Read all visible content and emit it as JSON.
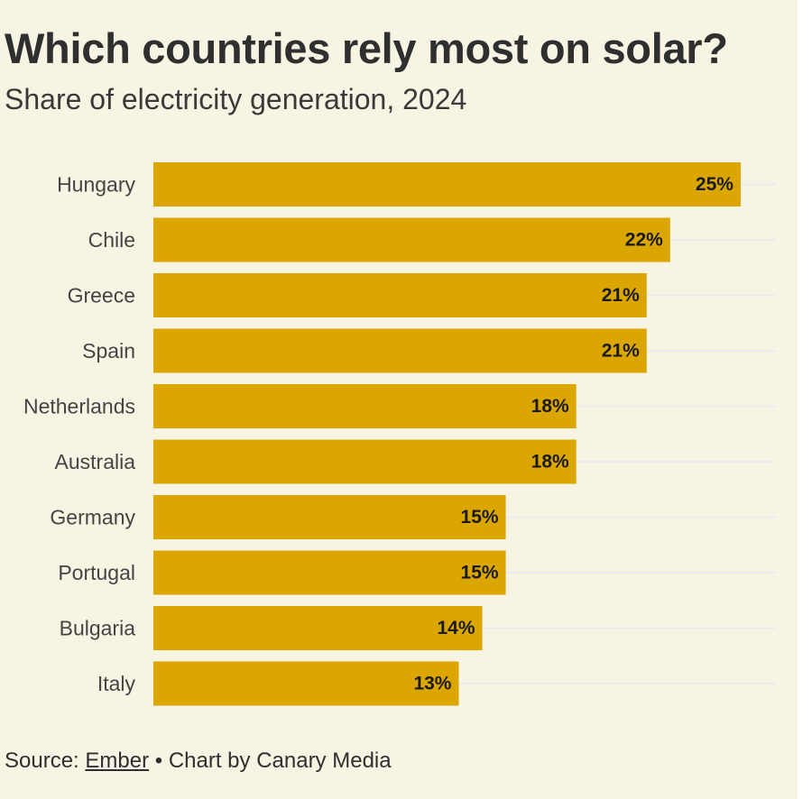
{
  "title": "Which countries rely most on solar?",
  "subtitle": "Share of electricity generation, 2024",
  "source": {
    "prefix": "Source: ",
    "link_text": "Ember",
    "suffix": " • Chart by Canary Media"
  },
  "colors": {
    "background": "#f8f4e4",
    "bar": "#dba600",
    "gridline": "#ebe9f2"
  },
  "chart_data": {
    "type": "bar",
    "orientation": "horizontal",
    "title": "Which countries rely most on solar?",
    "subtitle": "Share of electricity generation, 2024",
    "categories": [
      "Hungary",
      "Chile",
      "Greece",
      "Spain",
      "Netherlands",
      "Australia",
      "Germany",
      "Portugal",
      "Bulgaria",
      "Italy"
    ],
    "values": [
      25,
      22,
      21,
      21,
      18,
      18,
      15,
      15,
      14,
      13
    ],
    "value_labels": [
      "25%",
      "22%",
      "21%",
      "21%",
      "18%",
      "18%",
      "15%",
      "15%",
      "14%",
      "13%"
    ],
    "xlabel": "",
    "ylabel": "",
    "unit": "%",
    "xlim": [
      0,
      26.5
    ],
    "grid": true,
    "legend": "none"
  }
}
